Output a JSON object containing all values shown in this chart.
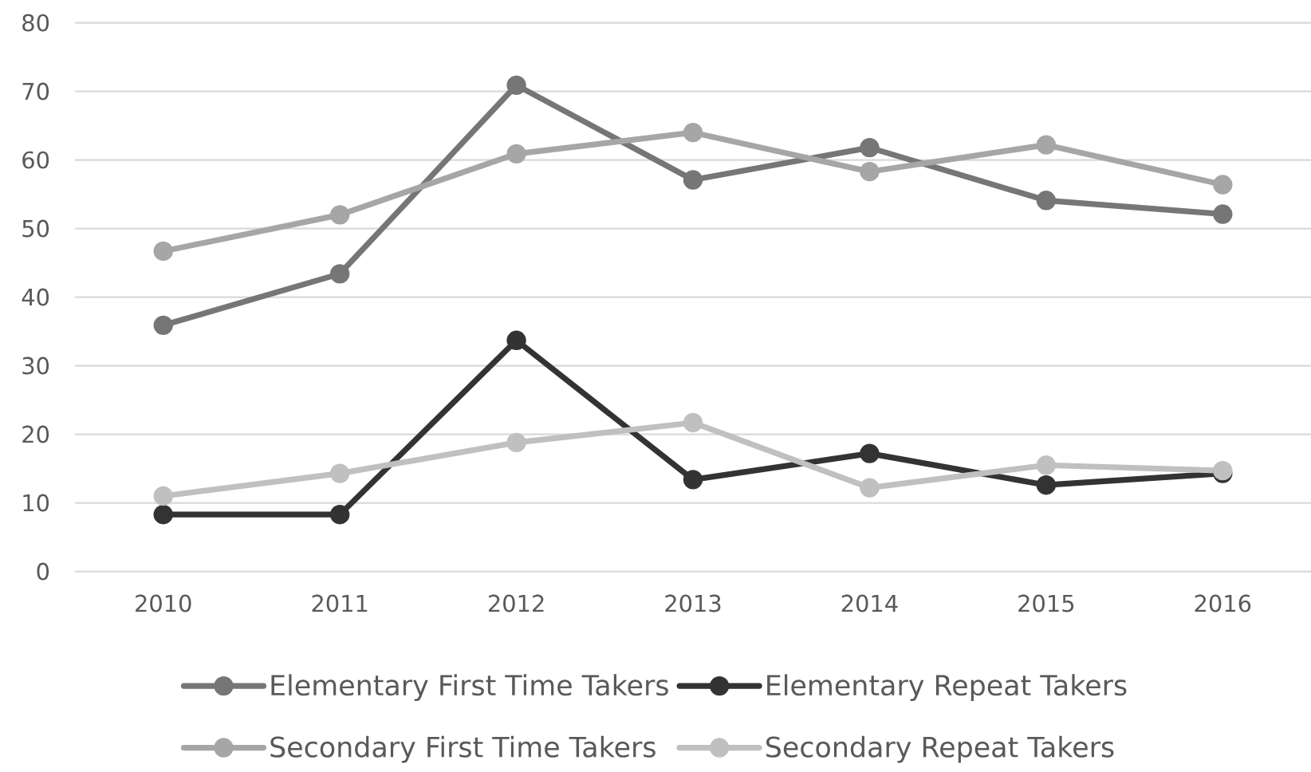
{
  "chart_data": {
    "type": "line",
    "categories": [
      "2010",
      "2011",
      "2012",
      "2013",
      "2014",
      "2015",
      "2016"
    ],
    "series": [
      {
        "name": "Elementary First Time Takers",
        "color": "#767676",
        "values": [
          35.9,
          43.4,
          70.9,
          57.1,
          61.8,
          54.1,
          52.1
        ]
      },
      {
        "name": "Elementary Repeat Takers",
        "color": "#333333",
        "values": [
          8.3,
          8.3,
          33.7,
          13.4,
          17.2,
          12.6,
          14.3
        ]
      },
      {
        "name": "Secondary First Time Takers",
        "color": "#a6a6a6",
        "values": [
          46.7,
          52.0,
          60.9,
          64.0,
          58.3,
          62.2,
          56.4
        ]
      },
      {
        "name": "Secondary Repeat Takers",
        "color": "#c0c0c0",
        "values": [
          11.0,
          14.3,
          18.8,
          21.7,
          12.2,
          15.5,
          14.7
        ]
      }
    ],
    "ylim": [
      0,
      80
    ],
    "yticks": [
      0,
      10,
      20,
      30,
      40,
      50,
      60,
      70,
      80
    ],
    "grid": "y",
    "legend": "bottom",
    "marker": "circle",
    "line_style": "solid"
  }
}
